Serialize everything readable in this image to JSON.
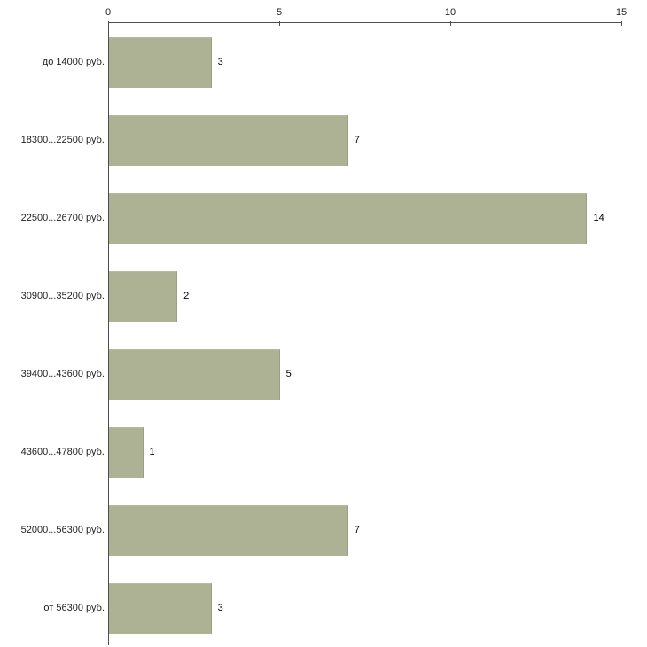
{
  "chart_data": {
    "type": "bar",
    "orientation": "horizontal",
    "title": "",
    "xlabel": "",
    "ylabel": "",
    "categories": [
      "до 14000 руб.",
      "18300...22500 руб.",
      "22500...26700 руб.",
      "30900...35200 руб.",
      "39400...43600 руб.",
      "43600...47800 руб.",
      "52000...56300 руб.",
      "от 56300 руб."
    ],
    "values": [
      3,
      7,
      14,
      2,
      5,
      1,
      7,
      3
    ],
    "xlim": [
      0,
      15
    ],
    "x_ticks": [
      0,
      5,
      10,
      15
    ],
    "grid": false,
    "legend": false,
    "colors": {
      "bar": "#adb294",
      "bar_edge": "#9aa084",
      "axis": "#4d4d4d",
      "text": "#222222",
      "background": "#ffffff"
    }
  }
}
